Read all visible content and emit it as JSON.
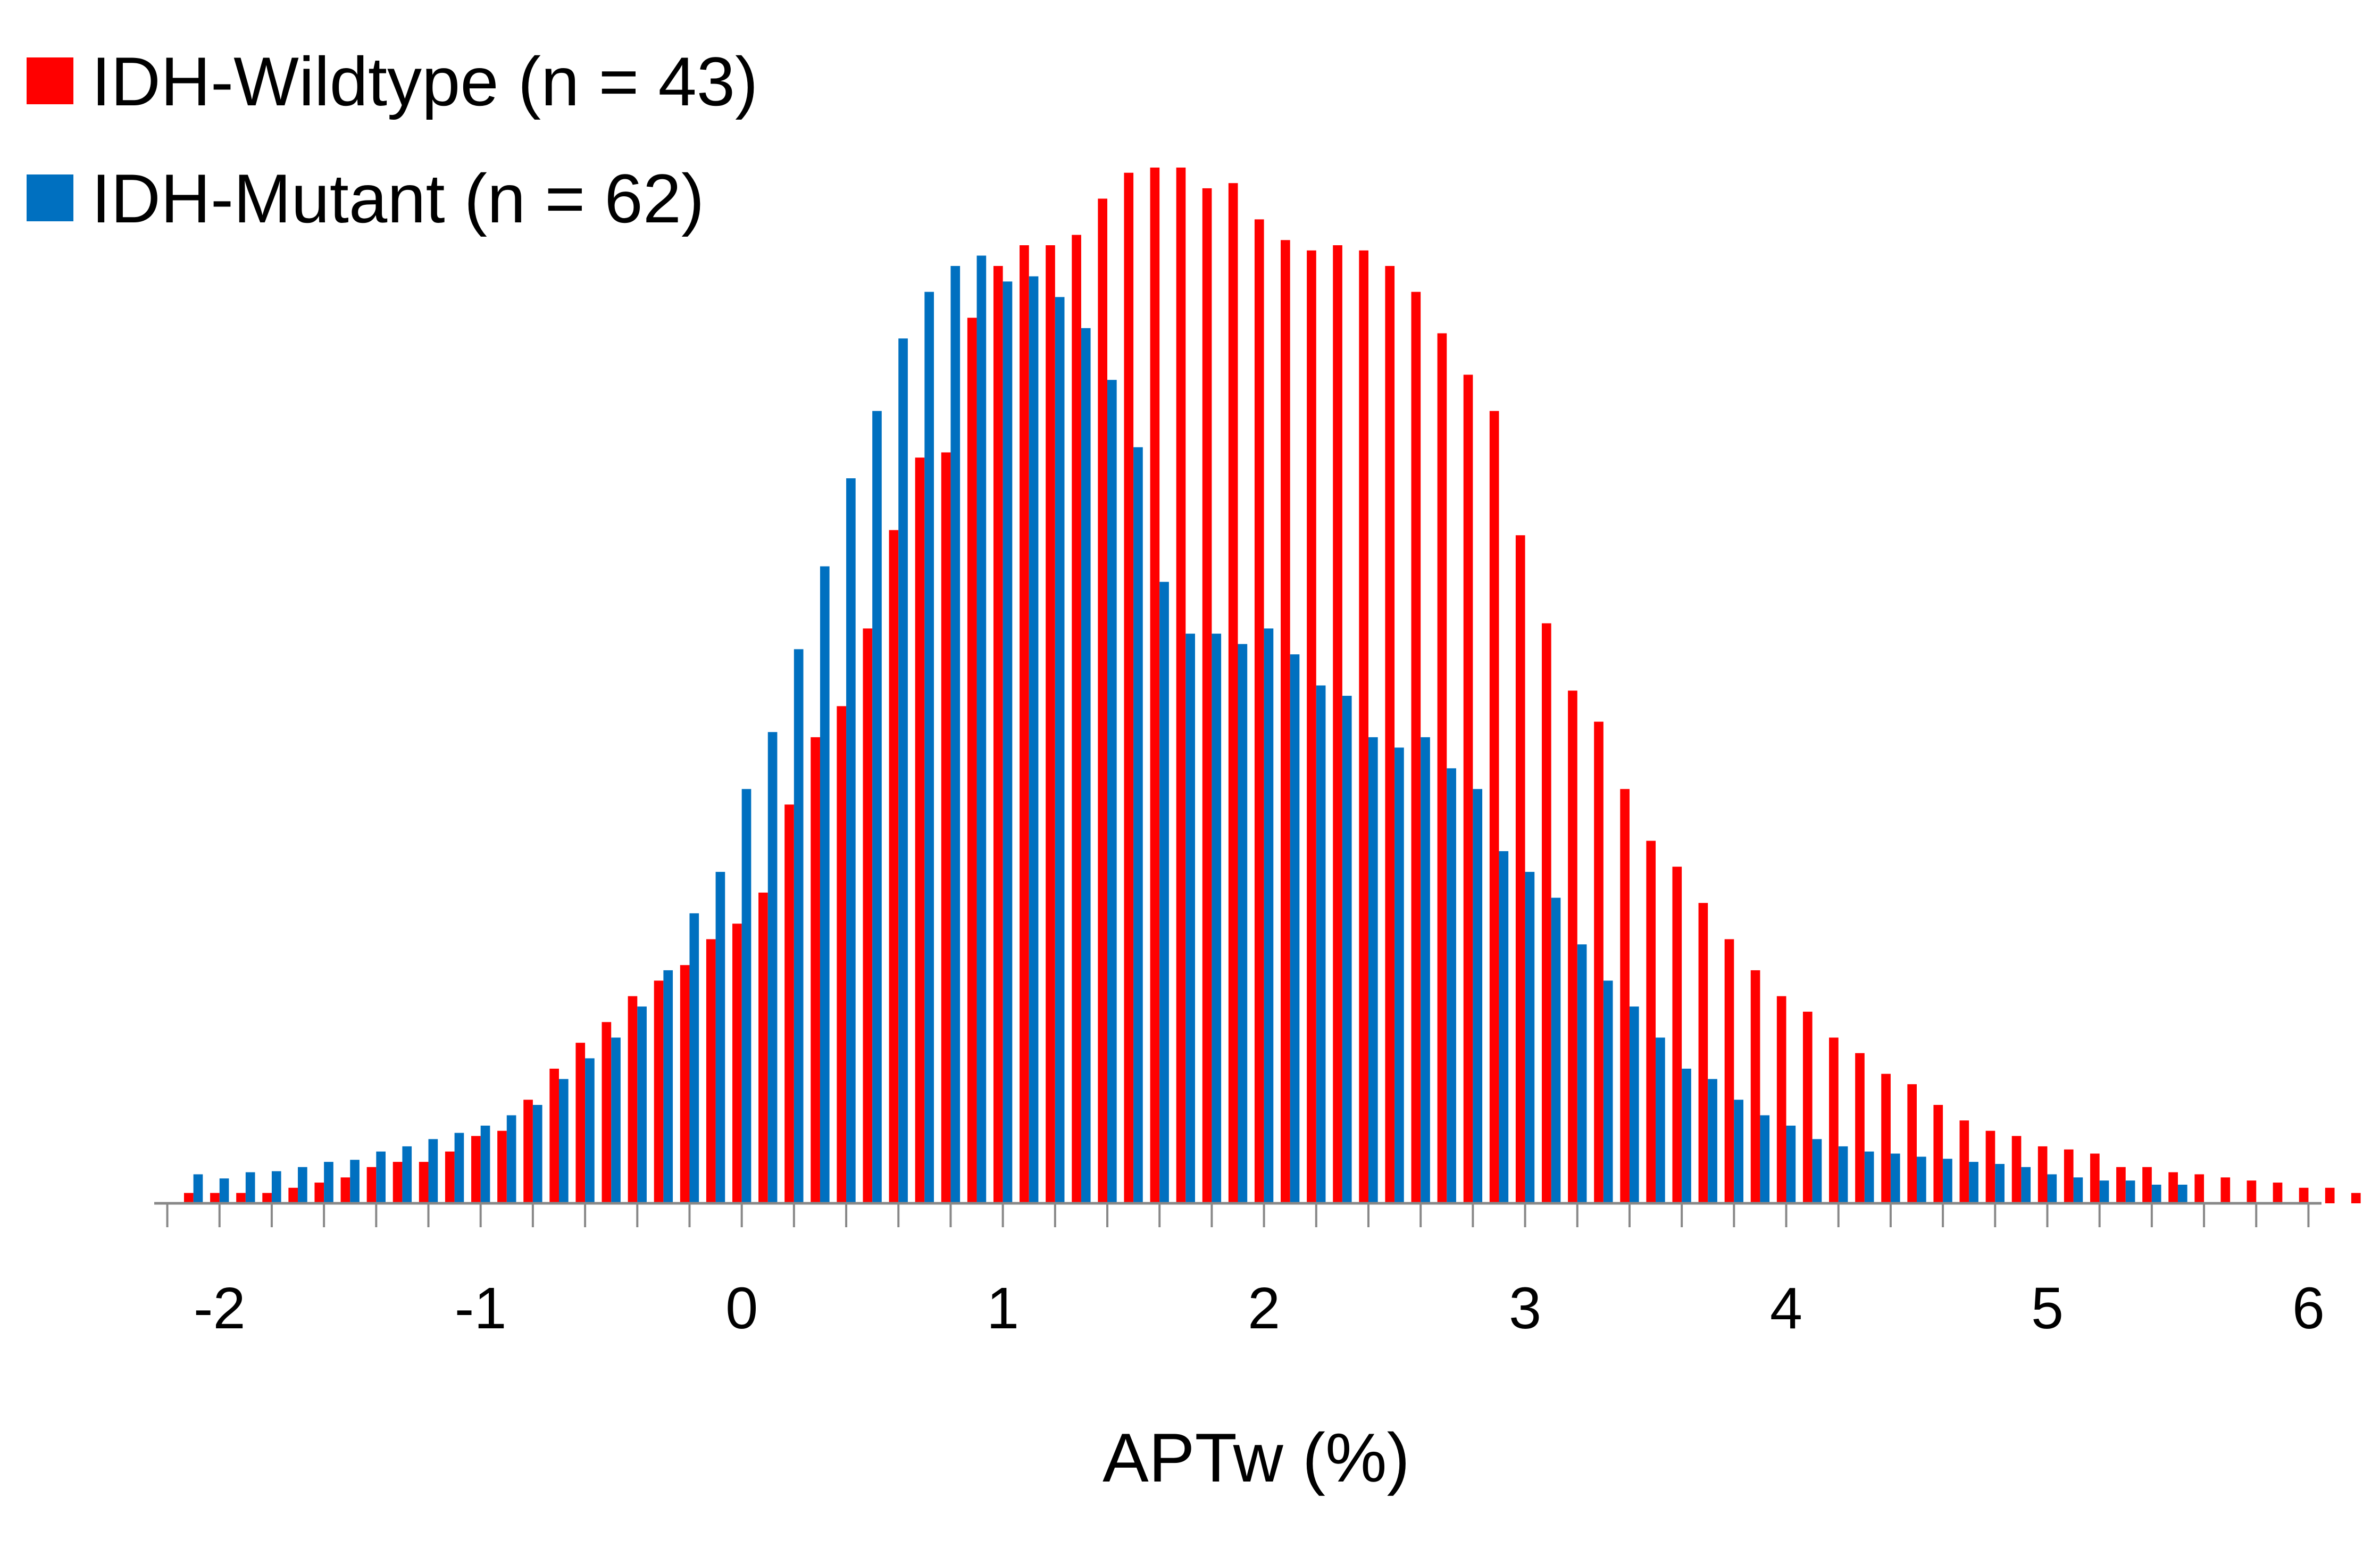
{
  "chart_data": {
    "type": "bar",
    "xlabel": "APTw (%)",
    "ylabel": "",
    "title": "",
    "xlim": [
      -2.25,
      6.05
    ],
    "ylim": [
      0,
      1
    ],
    "x_ticks": [
      -2,
      -1,
      0,
      1,
      2,
      3,
      4,
      5,
      6
    ],
    "bin_start": -2.1,
    "bin_width": 0.1,
    "grid": false,
    "legend_position": "top-left",
    "series": [
      {
        "name": "IDH-Wildtype (n = 43)",
        "color": "#ff0000",
        "values": [
          0.01,
          0.01,
          0.01,
          0.01,
          0.015,
          0.02,
          0.025,
          0.035,
          0.04,
          0.04,
          0.05,
          0.065,
          0.07,
          0.1,
          0.13,
          0.155,
          0.175,
          0.2,
          0.215,
          0.23,
          0.255,
          0.27,
          0.3,
          0.385,
          0.45,
          0.48,
          0.555,
          0.65,
          0.72,
          0.725,
          0.855,
          0.905,
          0.925,
          0.925,
          0.935,
          0.97,
          0.995,
          1.0,
          1.0,
          0.98,
          0.985,
          0.95,
          0.93,
          0.92,
          0.925,
          0.92,
          0.905,
          0.88,
          0.84,
          0.8,
          0.765,
          0.645,
          0.56,
          0.495,
          0.465,
          0.4,
          0.35,
          0.325,
          0.29,
          0.255,
          0.225,
          0.2,
          0.185,
          0.16,
          0.145,
          0.125,
          0.115,
          0.095,
          0.08,
          0.07,
          0.065,
          0.055,
          0.052,
          0.048,
          0.035,
          0.035,
          0.03,
          0.028,
          0.025,
          0.022,
          0.02,
          0.015,
          0.015,
          0.01
        ]
      },
      {
        "name": "IDH-Mutant (n = 62)",
        "color": "#0070c0",
        "values": [
          0.028,
          0.024,
          0.03,
          0.031,
          0.035,
          0.04,
          0.042,
          0.05,
          0.055,
          0.062,
          0.068,
          0.075,
          0.085,
          0.095,
          0.12,
          0.14,
          0.16,
          0.19,
          0.225,
          0.28,
          0.32,
          0.4,
          0.455,
          0.535,
          0.615,
          0.7,
          0.765,
          0.835,
          0.88,
          0.905,
          0.915,
          0.89,
          0.895,
          0.875,
          0.845,
          0.795,
          0.73,
          0.6,
          0.55,
          0.55,
          0.54,
          0.555,
          0.53,
          0.5,
          0.49,
          0.45,
          0.44,
          0.45,
          0.42,
          0.4,
          0.34,
          0.32,
          0.295,
          0.25,
          0.215,
          0.19,
          0.16,
          0.13,
          0.12,
          0.1,
          0.085,
          0.075,
          0.062,
          0.055,
          0.05,
          0.048,
          0.045,
          0.043,
          0.04,
          0.038,
          0.035,
          0.028,
          0.025,
          0.022,
          0.022,
          0.018,
          0.018
        ]
      }
    ]
  }
}
